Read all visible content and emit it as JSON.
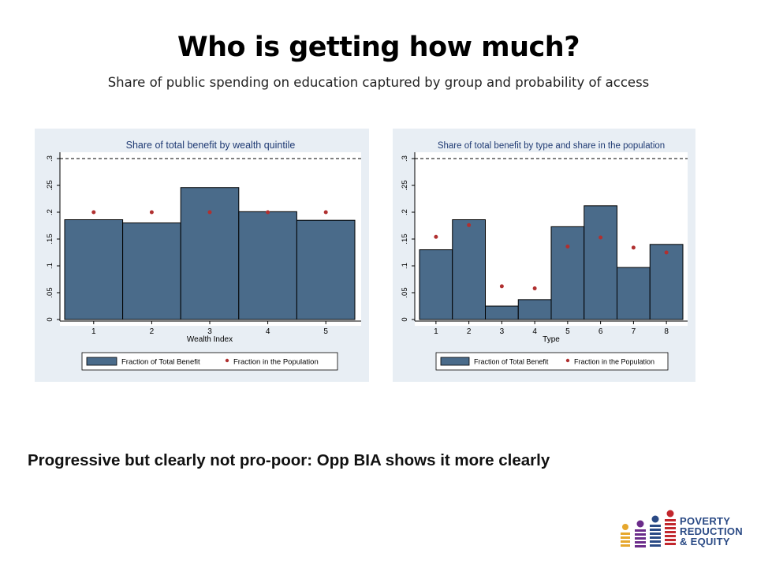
{
  "slide": {
    "title": "Who is getting how much?",
    "subtitle": "Share of public spending on education captured by group and probability of access",
    "conclusion": "Progressive but clearly not pro-poor: Opp BIA shows it more clearly"
  },
  "logo": {
    "lines": [
      "Poverty",
      "Reduction",
      "& Equity"
    ],
    "icon": "people-bars-logo",
    "colors": [
      "#e6a72d",
      "#6b2c8a",
      "#2a4a85",
      "#c2272d"
    ]
  },
  "colors": {
    "bar_fill": "#4a6b8a",
    "marker": "#b03030",
    "panel_bg": "#e8eef4",
    "plot_bg": "#ffffff",
    "chart_title": "#1f3a73"
  },
  "chart_data": [
    {
      "type": "bar",
      "title": "Share of total benefit by wealth quintile",
      "xlabel": "Wealth Index",
      "ylabel": "",
      "categories": [
        "1",
        "2",
        "3",
        "4",
        "5"
      ],
      "ylim": [
        0,
        0.3
      ],
      "yticks": [
        "0",
        ".05",
        ".1",
        ".15",
        ".2",
        ".25",
        ".3"
      ],
      "reference_line": 0.3,
      "legend_position": "bottom",
      "series": [
        {
          "name": "Fraction of Total Benefit",
          "kind": "bar",
          "values": [
            0.186,
            0.18,
            0.246,
            0.201,
            0.185
          ]
        },
        {
          "name": "Fraction in the Population",
          "kind": "marker",
          "values": [
            0.2,
            0.2,
            0.2,
            0.2,
            0.2
          ]
        }
      ]
    },
    {
      "type": "bar",
      "title": "Share of total benefit by type and share in the population",
      "xlabel": "Type",
      "ylabel": "",
      "categories": [
        "1",
        "2",
        "3",
        "4",
        "5",
        "6",
        "7",
        "8"
      ],
      "ylim": [
        0,
        0.3
      ],
      "yticks": [
        "0",
        ".05",
        ".1",
        ".15",
        ".2",
        ".25",
        ".3"
      ],
      "reference_line": 0.3,
      "legend_position": "bottom",
      "series": [
        {
          "name": "Fraction of Total Benefit",
          "kind": "bar",
          "values": [
            0.13,
            0.186,
            0.025,
            0.037,
            0.173,
            0.212,
            0.097,
            0.14
          ]
        },
        {
          "name": "Fraction in the Population",
          "kind": "marker",
          "values": [
            0.154,
            0.176,
            0.062,
            0.058,
            0.136,
            0.153,
            0.134,
            0.125
          ]
        }
      ]
    }
  ]
}
